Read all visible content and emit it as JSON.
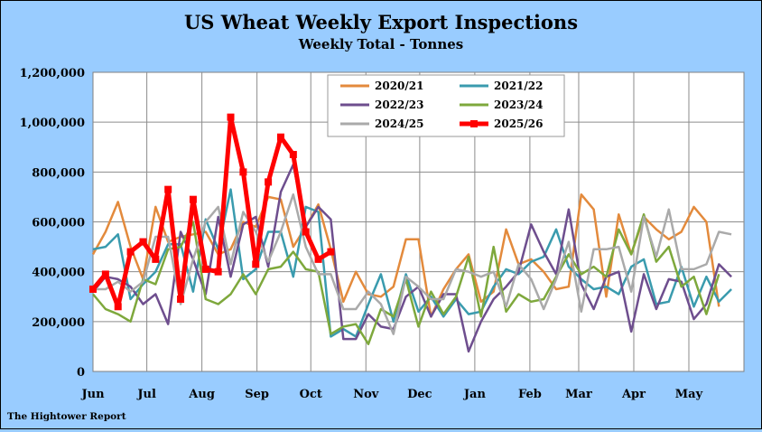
{
  "chart_data": {
    "type": "line",
    "title": "US Wheat Weekly Export Inspections",
    "subtitle": "Weekly Total - Tonnes",
    "xlabel": "",
    "ylabel": "",
    "ylim": [
      0,
      1200000
    ],
    "yticks": [
      0,
      200000,
      400000,
      600000,
      800000,
      1000000,
      1200000
    ],
    "ytick_labels": [
      "0",
      "200,000",
      "400,000",
      "600,000",
      "800,000",
      "1,000,000",
      "1,200,000"
    ],
    "weeks_total": 52,
    "month_labels": [
      {
        "label": "Jun",
        "week": 0
      },
      {
        "label": "Jul",
        "week": 4.3
      },
      {
        "label": "Aug",
        "week": 8.7
      },
      {
        "label": "Sep",
        "week": 13.1
      },
      {
        "label": "Oct",
        "week": 17.4
      },
      {
        "label": "Nov",
        "week": 21.8
      },
      {
        "label": "Dec",
        "week": 26.1
      },
      {
        "label": "Jan",
        "week": 30.5
      },
      {
        "label": "Feb",
        "week": 34.9
      },
      {
        "label": "Mar",
        "week": 38.8
      },
      {
        "label": "Apr",
        "week": 43.2
      },
      {
        "label": "May",
        "week": 47.6
      }
    ],
    "grid": true,
    "legend_position": "top-center",
    "series": [
      {
        "name": "2020/21",
        "color": "#E38A3C",
        "width": 2.5,
        "marker": false,
        "values": [
          470000,
          560000,
          680000,
          500000,
          370000,
          660000,
          520000,
          540000,
          550000,
          560000,
          470000,
          490000,
          600000,
          580000,
          700000,
          690000,
          500000,
          580000,
          670000,
          490000,
          280000,
          400000,
          310000,
          300000,
          340000,
          530000,
          530000,
          220000,
          330000,
          410000,
          470000,
          280000,
          320000,
          570000,
          430000,
          450000,
          400000,
          330000,
          340000,
          710000,
          650000,
          300000,
          630000,
          470000,
          620000,
          570000,
          530000,
          560000,
          660000,
          600000,
          260000
        ]
      },
      {
        "name": "2021/22",
        "color": "#3A9BAE",
        "width": 2.5,
        "marker": false,
        "values": [
          490000,
          500000,
          550000,
          290000,
          350000,
          400000,
          510000,
          510000,
          320000,
          610000,
          490000,
          730000,
          370000,
          410000,
          560000,
          560000,
          380000,
          660000,
          640000,
          140000,
          170000,
          140000,
          270000,
          390000,
          200000,
          390000,
          240000,
          300000,
          220000,
          290000,
          230000,
          240000,
          340000,
          410000,
          390000,
          440000,
          460000,
          570000,
          420000,
          370000,
          330000,
          340000,
          310000,
          420000,
          450000,
          270000,
          280000,
          420000,
          260000,
          380000,
          280000,
          330000
        ]
      },
      {
        "name": "2022/23",
        "color": "#6E4E8E",
        "width": 2.5,
        "marker": false,
        "values": [
          320000,
          380000,
          370000,
          340000,
          270000,
          310000,
          190000,
          560000,
          450000,
          310000,
          620000,
          380000,
          590000,
          620000,
          420000,
          720000,
          830000,
          580000,
          660000,
          610000,
          130000,
          130000,
          230000,
          180000,
          170000,
          300000,
          340000,
          220000,
          310000,
          310000,
          80000,
          200000,
          290000,
          340000,
          400000,
          590000,
          480000,
          390000,
          650000,
          350000,
          250000,
          380000,
          400000,
          160000,
          390000,
          250000,
          370000,
          360000,
          210000,
          270000,
          430000,
          380000
        ]
      },
      {
        "name": "2023/24",
        "color": "#7EA83C",
        "width": 2.5,
        "marker": false,
        "values": [
          310000,
          250000,
          230000,
          200000,
          370000,
          350000,
          490000,
          500000,
          600000,
          290000,
          270000,
          310000,
          390000,
          310000,
          410000,
          420000,
          480000,
          410000,
          400000,
          150000,
          180000,
          190000,
          110000,
          250000,
          220000,
          370000,
          180000,
          320000,
          230000,
          300000,
          460000,
          220000,
          500000,
          240000,
          310000,
          280000,
          290000,
          380000,
          470000,
          390000,
          420000,
          380000,
          570000,
          470000,
          630000,
          440000,
          500000,
          340000,
          380000,
          230000,
          390000
        ]
      },
      {
        "name": "2024/25",
        "color": "#AAAAAA",
        "width": 2.5,
        "marker": false,
        "values": [
          330000,
          330000,
          360000,
          320000,
          360000,
          540000,
          540000,
          270000,
          450000,
          600000,
          660000,
          430000,
          640000,
          560000,
          440000,
          560000,
          710000,
          500000,
          390000,
          390000,
          250000,
          250000,
          320000,
          270000,
          150000,
          380000,
          340000,
          290000,
          290000,
          410000,
          400000,
          380000,
          400000,
          260000,
          430000,
          370000,
          250000,
          370000,
          520000,
          240000,
          490000,
          490000,
          500000,
          320000,
          620000,
          460000,
          650000,
          410000,
          410000,
          430000,
          560000,
          550000
        ]
      },
      {
        "name": "2025/26",
        "color": "#FF0000",
        "width": 5,
        "marker": true,
        "values": [
          330000,
          390000,
          260000,
          480000,
          520000,
          450000,
          730000,
          290000,
          690000,
          410000,
          400000,
          1020000,
          800000,
          430000,
          760000,
          940000,
          870000,
          560000,
          450000,
          480000
        ]
      }
    ]
  },
  "footer": {
    "source": "The Hightower Report"
  },
  "colors": {
    "background": "#99CCFF",
    "plot_area": "#FFFFFF",
    "legend_bg": "#FFFFFF"
  }
}
